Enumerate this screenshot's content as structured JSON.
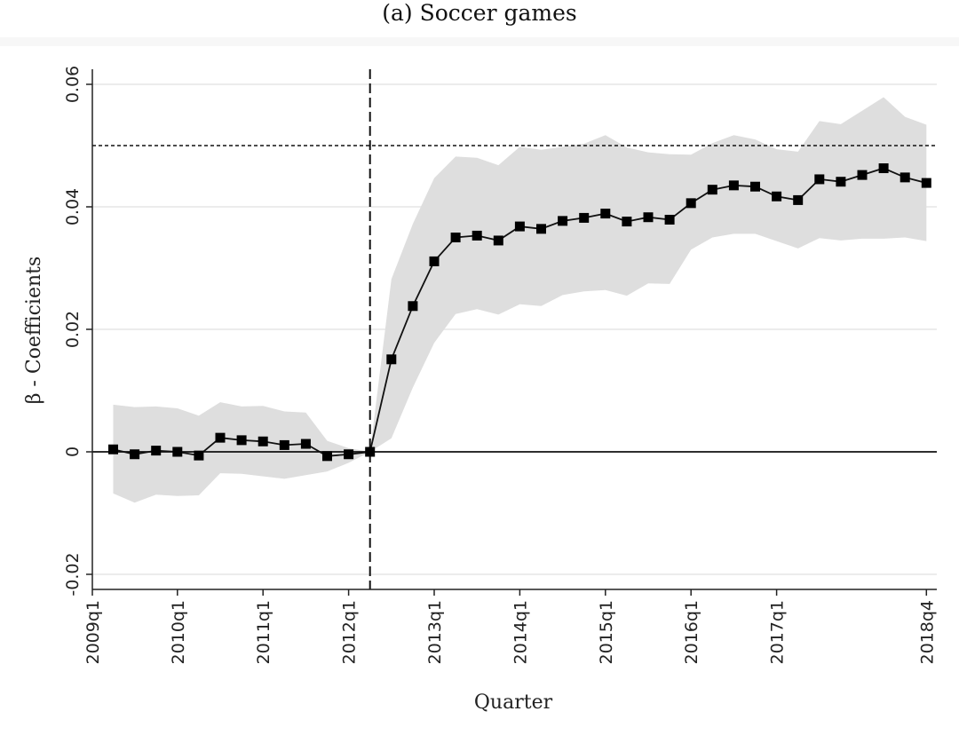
{
  "chart_data": {
    "type": "line",
    "title": "(a) Soccer games",
    "xlabel": "Quarter",
    "ylabel": "β - Coefficients",
    "ylim": [
      -0.022,
      0.0625
    ],
    "y_ticks": [
      -0.02,
      0,
      0.02,
      0.04,
      0.06
    ],
    "y_tick_labels": [
      "-0.02",
      "0",
      "0.02",
      "0.04",
      "0.06"
    ],
    "x_tick_labels": [
      "2009q1",
      "2010q1",
      "2011q1",
      "2012q1",
      "2013q1",
      "2014q1",
      "2015q1",
      "2016q1",
      "2017q1",
      "2018q4"
    ],
    "grid": "horizontal",
    "legend": "none",
    "reference_lines": {
      "zero": 0,
      "horizontal_dotted": 0.05,
      "vertical_dashed": "2012q2"
    },
    "colors": {
      "line": "#111111",
      "marker": "#000000",
      "band": "#dedede",
      "grid": "#e6e6e6"
    },
    "series": [
      {
        "x": [
          "2009q2",
          "2009q3",
          "2009q4",
          "2010q1",
          "2010q2",
          "2010q3",
          "2010q4",
          "2011q1",
          "2011q2",
          "2011q3",
          "2011q4",
          "2012q1",
          "2012q2",
          "2012q3",
          "2012q4",
          "2013q1",
          "2013q2",
          "2013q3",
          "2013q4",
          "2014q1",
          "2014q2",
          "2014q3",
          "2014q4",
          "2015q1",
          "2015q2",
          "2015q3",
          "2015q4",
          "2016q1",
          "2016q2",
          "2016q3",
          "2016q4",
          "2017q1",
          "2017q2",
          "2017q3",
          "2017q4",
          "2018q1",
          "2018q2",
          "2018q3",
          "2018q4"
        ],
        "values": [
          0.0004,
          -0.0004,
          0.0002,
          0.0,
          -0.0006,
          0.0023,
          0.0019,
          0.0017,
          0.0011,
          0.0013,
          -0.0007,
          -0.0004,
          0.0,
          0.0151,
          0.0238,
          0.0311,
          0.035,
          0.0353,
          0.0345,
          0.0368,
          0.0364,
          0.0377,
          0.0382,
          0.0389,
          0.0376,
          0.0383,
          0.0379,
          0.0406,
          0.0428,
          0.0435,
          0.0433,
          0.0417,
          0.0411,
          0.0445,
          0.0441,
          0.0452,
          0.0463,
          0.0448,
          0.0439
        ],
        "ci_lower": [
          -0.0068,
          -0.0083,
          -0.007,
          -0.0072,
          -0.0071,
          -0.0035,
          -0.0036,
          -0.004,
          -0.0044,
          -0.0038,
          -0.0032,
          -0.0018,
          0.0,
          0.0022,
          0.0105,
          0.0178,
          0.0225,
          0.0233,
          0.0224,
          0.0241,
          0.0238,
          0.0256,
          0.0262,
          0.0264,
          0.0255,
          0.0275,
          0.0274,
          0.033,
          0.035,
          0.0356,
          0.0356,
          0.0344,
          0.0332,
          0.0349,
          0.0345,
          0.0348,
          0.0348,
          0.035,
          0.0344
        ],
        "ci_upper": [
          0.0077,
          0.0073,
          0.0074,
          0.0071,
          0.0059,
          0.0081,
          0.0074,
          0.0075,
          0.0066,
          0.0064,
          0.0018,
          0.0006,
          0.0,
          0.0282,
          0.0372,
          0.0447,
          0.0482,
          0.048,
          0.0468,
          0.0498,
          0.0493,
          0.0498,
          0.0503,
          0.0517,
          0.0497,
          0.0489,
          0.0486,
          0.0485,
          0.0504,
          0.0517,
          0.051,
          0.0494,
          0.049,
          0.054,
          0.0535,
          0.0557,
          0.0579,
          0.0547,
          0.0534
        ]
      }
    ]
  }
}
